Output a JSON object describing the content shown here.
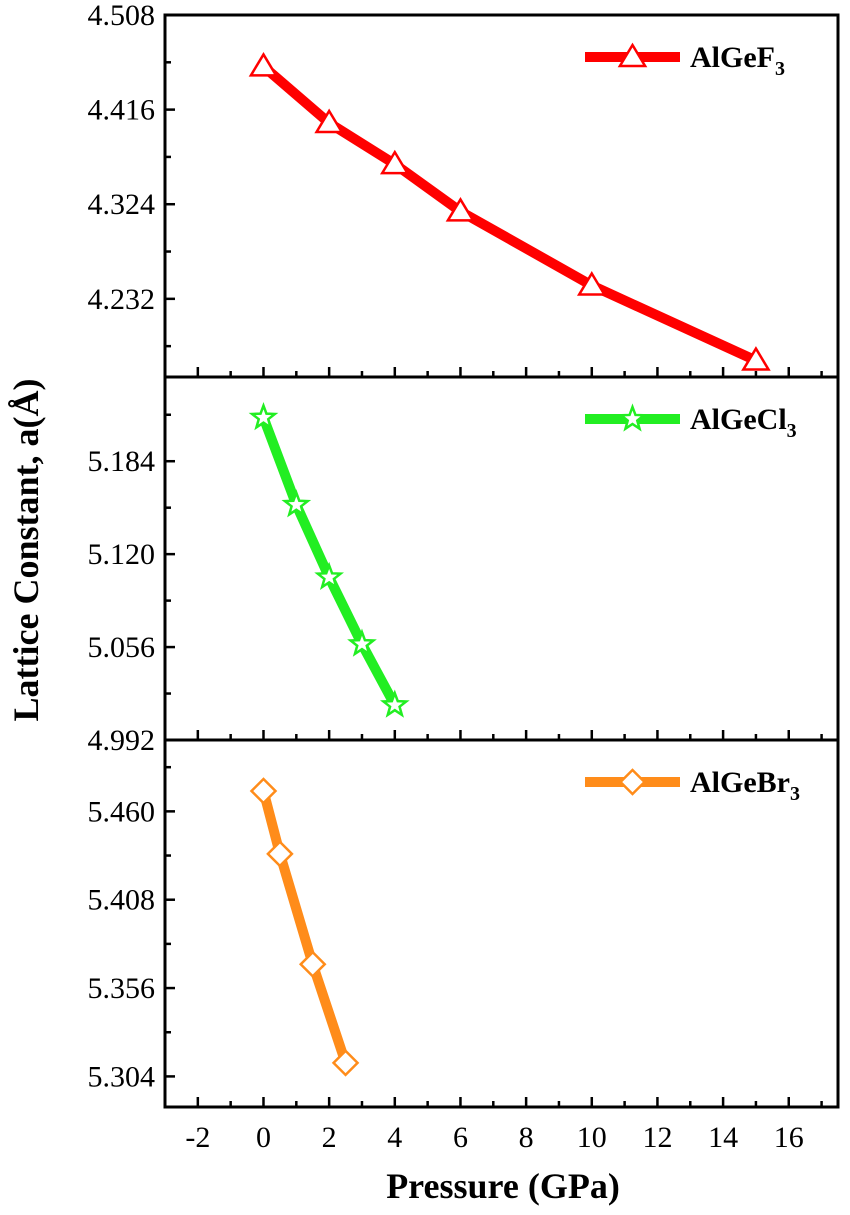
{
  "chart_data": {
    "type": "line",
    "xlabel": "Pressure (GPa)",
    "ylabel": "Lattice Constant, a(Å)",
    "xlim": [
      -3,
      17.5
    ],
    "x_ticks": [
      -2,
      0,
      2,
      4,
      6,
      8,
      10,
      12,
      14,
      16
    ],
    "x_tick_labels": [
      "-2",
      "0",
      "2",
      "4",
      "6",
      "8",
      "10",
      "12",
      "14",
      "16"
    ],
    "grid": false,
    "legend_position": "top-right",
    "panels": [
      {
        "id": "f",
        "ylim": [
          4.156,
          4.508
        ],
        "y_ticks": [
          4.232,
          4.324,
          4.416,
          4.508
        ],
        "y_tick_labels": [
          "4.232",
          "4.324",
          "4.416",
          "4.508"
        ],
        "y_tick_labels_shown": [
          "4.232",
          "4.324",
          "4.416",
          "4.508"
        ],
        "series": [
          {
            "name": "AlGeF3",
            "name_base": "AlGeF",
            "name_sub": "3",
            "color": "#ff0000",
            "marker": "triangle",
            "x": [
              0,
              2,
              4,
              6,
              10,
              15
            ],
            "y": [
              4.458,
              4.403,
              4.363,
              4.317,
              4.245,
              4.172
            ]
          }
        ]
      },
      {
        "id": "cl",
        "ylim": [
          4.992,
          5.242
        ],
        "y_ticks": [
          4.992,
          5.056,
          5.12,
          5.184
        ],
        "y_tick_labels": [
          "4.992",
          "5.056",
          "5.120",
          "5.184"
        ],
        "series": [
          {
            "name": "AlGeCl3",
            "name_base": "AlGeCl",
            "name_sub": "3",
            "color": "#22ee22",
            "marker": "star",
            "x": [
              0,
              1,
              2,
              3,
              4
            ],
            "y": [
              5.214,
              5.154,
              5.104,
              5.058,
              5.016
            ]
          }
        ]
      },
      {
        "id": "br",
        "ylim": [
          5.286,
          5.502
        ],
        "y_ticks": [
          5.304,
          5.356,
          5.408,
          5.46
        ],
        "y_tick_labels": [
          "5.304",
          "5.356",
          "5.408",
          "5.460"
        ],
        "series": [
          {
            "name": "AlGeBr3",
            "name_base": "AlGeBr",
            "name_sub": "3",
            "color": "#ff8c1a",
            "marker": "diamond",
            "x": [
              0,
              0.5,
              1.5,
              2.5
            ],
            "y": [
              5.472,
              5.435,
              5.37,
              5.312
            ]
          }
        ]
      }
    ]
  }
}
